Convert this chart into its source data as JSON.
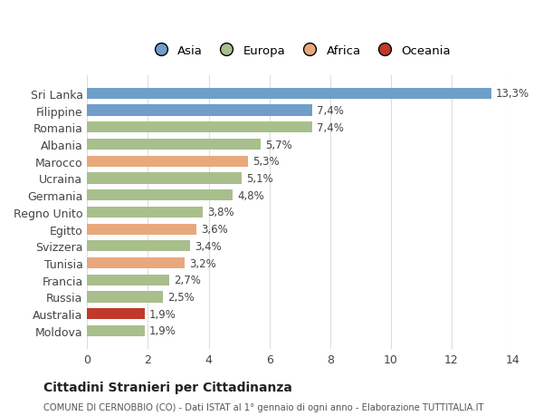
{
  "categories": [
    "Sri Lanka",
    "Filippine",
    "Romania",
    "Albania",
    "Marocco",
    "Ucraina",
    "Germania",
    "Regno Unito",
    "Egitto",
    "Svizzera",
    "Tunisia",
    "Francia",
    "Russia",
    "Australia",
    "Moldova"
  ],
  "values": [
    13.3,
    7.4,
    7.4,
    5.7,
    5.3,
    5.1,
    4.8,
    3.8,
    3.6,
    3.4,
    3.2,
    2.7,
    2.5,
    1.9,
    1.9
  ],
  "labels": [
    "13,3%",
    "7,4%",
    "7,4%",
    "5,7%",
    "5,3%",
    "5,1%",
    "4,8%",
    "3,8%",
    "3,6%",
    "3,4%",
    "3,2%",
    "2,7%",
    "2,5%",
    "1,9%",
    "1,9%"
  ],
  "colors": [
    "#6f9ec9",
    "#6f9ec9",
    "#a8bf8c",
    "#a8bf8c",
    "#e8a87c",
    "#a8bf8c",
    "#a8bf8c",
    "#a8bf8c",
    "#e8a87c",
    "#a8bf8c",
    "#e8a87c",
    "#a8bf8c",
    "#a8bf8c",
    "#c0392b",
    "#a8bf8c"
  ],
  "continent_colors": {
    "Asia": "#6f9ec9",
    "Europa": "#a8bf8c",
    "Africa": "#e8a87c",
    "Oceania": "#c0392b"
  },
  "legend_labels": [
    "Asia",
    "Europa",
    "Africa",
    "Oceania"
  ],
  "title": "Cittadini Stranieri per Cittadinanza",
  "subtitle": "COMUNE DI CERNOBBIO (CO) - Dati ISTAT al 1° gennaio di ogni anno - Elaborazione TUTTITALIA.IT",
  "xlim": [
    0,
    14
  ],
  "xticks": [
    0,
    2,
    4,
    6,
    8,
    10,
    12,
    14
  ],
  "bg_color": "#ffffff",
  "grid_color": "#dddddd"
}
